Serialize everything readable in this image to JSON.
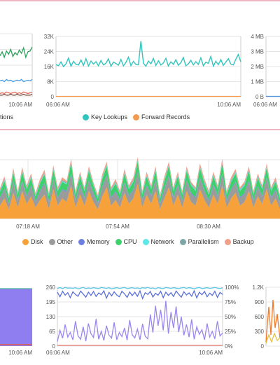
{
  "chart_data": [
    {
      "type": "line",
      "id": "top-left-partial",
      "x_ticks": [
        "10:06 AM"
      ],
      "legend_partial_text": "tions",
      "series": [
        {
          "color": "#2ca05a",
          "values": [
            52,
            57,
            50,
            58,
            54,
            60,
            51,
            56,
            53,
            59,
            55,
            62,
            50,
            57,
            58,
            63
          ]
        },
        {
          "color": "#4aa0e8",
          "values": [
            20,
            21,
            19,
            22,
            20,
            21,
            19,
            20,
            21,
            20,
            22,
            19,
            20,
            21,
            20,
            22
          ]
        },
        {
          "color": "#e46a5a",
          "values": [
            4,
            5,
            4,
            6,
            5,
            4,
            5,
            6,
            4,
            5,
            4,
            6,
            5,
            4,
            5,
            5
          ]
        },
        {
          "color": "#7a4a3a",
          "values": [
            2,
            2,
            3,
            2,
            2,
            3,
            2,
            2,
            3,
            2,
            2,
            3,
            2,
            2,
            2,
            3
          ]
        }
      ],
      "ylim": [
        0,
        80
      ]
    },
    {
      "type": "line",
      "id": "key-lookups",
      "y_ticks": [
        "0",
        "8K",
        "16K",
        "24K",
        "32K"
      ],
      "ylim": [
        0,
        32000
      ],
      "x_ticks": [
        "06:06 AM",
        "10:06 AM"
      ],
      "series": [
        {
          "name": "Key Lookups",
          "color": "#30c5bd",
          "values": [
            17000,
            16500,
            18500,
            16000,
            17500,
            20500,
            16200,
            18800,
            17200,
            16800,
            19500,
            16600,
            20200,
            16300,
            18900,
            17300,
            18600,
            16400,
            19200,
            16900,
            17800,
            20100,
            16200,
            18400,
            17600,
            16700,
            19800,
            16400,
            18200,
            21000,
            16500,
            18700,
            17100,
            16900,
            29500,
            17800,
            16200,
            18900,
            17500,
            20300,
            16600,
            19100,
            16800,
            17900,
            20400,
            16300,
            18500,
            17200,
            19600,
            16700,
            18100,
            20800,
            16400,
            17400,
            19300,
            16900,
            18600,
            17100,
            20600,
            16500,
            18300,
            17700,
            21400,
            16200,
            18800,
            17000,
            19700,
            16600,
            18400,
            20200,
            17300,
            16800,
            19900,
            22400,
            18500
          ]
        },
        {
          "name": "Forward Records",
          "color": "#f39a4f",
          "values": [
            150,
            150,
            150,
            150,
            150,
            150,
            150,
            150,
            150,
            150,
            150,
            150,
            150,
            150,
            150,
            150,
            150,
            150,
            150,
            150,
            150,
            150,
            150,
            150,
            150,
            150,
            150,
            150,
            150,
            150,
            150,
            150,
            150,
            150,
            150,
            150,
            150,
            150,
            150,
            150,
            150,
            150,
            150,
            150,
            150,
            150,
            150,
            150,
            150,
            150,
            150,
            150,
            150,
            150,
            150,
            150,
            150,
            150,
            150,
            150,
            150,
            150,
            150,
            150,
            150,
            150,
            150,
            150,
            150,
            150,
            150,
            150,
            150,
            150,
            150
          ]
        }
      ]
    },
    {
      "type": "line",
      "id": "top-right-partial",
      "y_ticks": [
        "0 B",
        "1 MB",
        "2 MB",
        "3 MB",
        "4 MB"
      ],
      "ylim": [
        0,
        4
      ],
      "x_ticks": [
        "06:06 AM"
      ]
    },
    {
      "type": "area",
      "id": "waits",
      "stacked": true,
      "x_ticks": [
        "07:18 AM",
        "07:54 AM",
        "08:30 AM"
      ],
      "series": [
        {
          "name": "Disk",
          "color": "#f7a13a",
          "values": [
            14,
            22,
            10,
            28,
            12,
            30,
            16,
            24,
            12,
            20,
            26,
            10,
            32,
            14,
            22,
            18,
            36,
            12,
            26,
            14,
            30,
            18,
            10,
            24,
            34,
            14,
            20,
            12,
            28,
            16,
            22,
            38,
            12,
            26,
            16,
            30,
            10,
            22,
            34,
            14,
            26,
            12,
            30,
            18,
            14,
            32,
            20,
            12,
            26,
            16,
            36,
            12,
            22,
            28,
            14,
            18,
            30,
            12,
            24,
            16,
            32,
            14,
            22,
            10
          ]
        },
        {
          "name": "Other",
          "color": "#9b9b9b",
          "values": [
            8,
            10,
            6,
            12,
            7,
            10,
            8,
            11,
            6,
            9,
            12,
            7,
            10,
            8,
            9,
            11,
            12,
            7,
            10,
            8,
            11,
            9,
            6,
            10,
            12,
            8,
            9,
            7,
            11,
            8,
            9,
            12,
            7,
            10,
            8,
            11,
            6,
            10,
            12,
            8,
            10,
            7,
            11,
            9,
            8,
            12,
            9,
            7,
            10,
            8,
            12,
            7,
            9,
            11,
            8,
            9,
            11,
            7,
            10,
            8,
            12,
            8,
            9,
            6
          ]
        },
        {
          "name": "Memory",
          "color": "#6e7fe0",
          "values": [
            1,
            1,
            1,
            1,
            1,
            1,
            1,
            1,
            1,
            1,
            1,
            1,
            1,
            1,
            1,
            1,
            1,
            1,
            1,
            1,
            1,
            1,
            1,
            1,
            1,
            1,
            1,
            1,
            1,
            1,
            1,
            1,
            1,
            1,
            1,
            1,
            1,
            1,
            1,
            1,
            1,
            1,
            1,
            1,
            1,
            1,
            1,
            1,
            1,
            1,
            1,
            1,
            1,
            1,
            1,
            1,
            1,
            1,
            1,
            1,
            1,
            1,
            1,
            1
          ]
        },
        {
          "name": "CPU",
          "color": "#3ed06a",
          "values": [
            6,
            8,
            5,
            9,
            6,
            10,
            7,
            8,
            5,
            8,
            9,
            6,
            10,
            7,
            8,
            7,
            11,
            6,
            9,
            7,
            10,
            8,
            5,
            8,
            10,
            7,
            8,
            6,
            9,
            7,
            8,
            11,
            6,
            9,
            7,
            10,
            5,
            8,
            10,
            7,
            9,
            6,
            10,
            8,
            7,
            10,
            8,
            6,
            9,
            7,
            11,
            6,
            8,
            9,
            7,
            8,
            10,
            6,
            9,
            7,
            10,
            7,
            8,
            5
          ]
        },
        {
          "name": "Network",
          "color": "#5fe6e6",
          "values": [
            1,
            1,
            1,
            1,
            1,
            1,
            1,
            1,
            1,
            1,
            1,
            1,
            1,
            1,
            1,
            1,
            1,
            1,
            1,
            1,
            1,
            1,
            1,
            1,
            1,
            1,
            1,
            1,
            1,
            1,
            1,
            1,
            1,
            1,
            1,
            1,
            1,
            1,
            1,
            1,
            1,
            1,
            1,
            1,
            1,
            1,
            1,
            1,
            1,
            1,
            1,
            1,
            1,
            1,
            1,
            1,
            1,
            1,
            1,
            1,
            1,
            1,
            1,
            1
          ]
        },
        {
          "name": "Parallelism",
          "color": "#7fa6a6",
          "values": [
            1,
            1,
            1,
            1,
            1,
            1,
            1,
            1,
            1,
            1,
            1,
            1,
            1,
            1,
            1,
            1,
            1,
            1,
            1,
            1,
            1,
            1,
            1,
            1,
            1,
            1,
            1,
            1,
            1,
            1,
            1,
            1,
            1,
            1,
            1,
            1,
            1,
            1,
            1,
            1,
            1,
            1,
            1,
            1,
            1,
            1,
            1,
            1,
            1,
            1,
            1,
            1,
            1,
            1,
            1,
            1,
            1,
            1,
            1,
            1,
            1,
            1,
            1,
            1
          ]
        },
        {
          "name": "Backup",
          "color": "#f0a08a",
          "values": [
            2,
            3,
            2,
            3,
            2,
            3,
            2,
            3,
            2,
            3,
            3,
            2,
            3,
            2,
            3,
            2,
            3,
            2,
            3,
            2,
            3,
            2,
            2,
            3,
            3,
            2,
            3,
            2,
            3,
            2,
            3,
            3,
            2,
            3,
            2,
            3,
            2,
            3,
            3,
            2,
            3,
            2,
            3,
            2,
            2,
            3,
            3,
            2,
            3,
            2,
            3,
            2,
            3,
            3,
            2,
            2,
            3,
            2,
            3,
            2,
            3,
            2,
            3,
            2
          ]
        }
      ]
    },
    {
      "type": "area",
      "id": "bottom-left-partial",
      "x_ticks": [
        "10:06 AM"
      ],
      "colors": {
        "fill": "#8f7ef0",
        "line": "#e45a4a",
        "top": "#4ab0a0"
      }
    },
    {
      "type": "line",
      "id": "bottom-middle",
      "y_ticks_left": [
        "0",
        "65",
        "130",
        "195",
        "260"
      ],
      "y_ticks_right": [
        "0%",
        "25%",
        "50%",
        "75%",
        "100%"
      ],
      "ylim": [
        0,
        260
      ],
      "x_ticks": [
        "06:06 AM",
        "10:06 AM"
      ],
      "series": [
        {
          "color": "#5cc8e8",
          "values": [
            255,
            258,
            254,
            259,
            256,
            257,
            255,
            258,
            253,
            256,
            259,
            254,
            257,
            255,
            258,
            256,
            254,
            259,
            257,
            255,
            258,
            253,
            256,
            258,
            255,
            257,
            259,
            254,
            256,
            258,
            255,
            257,
            254,
            258,
            256,
            259,
            255,
            257,
            253,
            258,
            256,
            254,
            259,
            257,
            255,
            258,
            256,
            254,
            257,
            259,
            255,
            258,
            256,
            253,
            257,
            259,
            254,
            256,
            258,
            255,
            257,
            259,
            256,
            254,
            258
          ]
        },
        {
          "color": "#5a6fd8",
          "values": [
            238,
            218,
            242,
            225,
            236,
            214,
            240,
            228,
            220,
            243,
            230,
            216,
            238,
            224,
            241,
            219,
            235,
            227,
            244,
            212,
            237,
            222,
            240,
            226,
            218,
            242,
            231,
            215,
            239,
            223,
            238,
            220,
            244,
            210,
            236,
            228,
            241,
            217,
            233,
            225,
            242,
            214,
            238,
            224,
            236,
            219,
            243,
            229,
            216,
            240,
            226,
            235,
            220,
            244,
            213,
            238,
            227,
            241,
            218,
            234,
            224,
            242,
            215,
            237,
            228
          ]
        },
        {
          "color": "#9b86ee",
          "values": [
            20,
            70,
            35,
            95,
            40,
            60,
            28,
            110,
            45,
            30,
            85,
            22,
            100,
            55,
            38,
            120,
            30,
            65,
            25,
            90,
            48,
            35,
            105,
            28,
            60,
            42,
            80,
            26,
            115,
            50,
            36,
            75,
            28,
            98,
            44,
            32,
            140,
            60,
            178,
            90,
            160,
            70,
            200,
            55,
            150,
            80,
            175,
            62,
            130,
            48,
            95,
            40,
            118,
            30,
            85,
            52,
            72,
            28,
            100,
            40,
            65,
            32,
            110,
            45,
            58
          ]
        }
      ]
    },
    {
      "type": "line",
      "id": "bottom-right-partial",
      "y_ticks": [
        "0",
        "300",
        "600",
        "900",
        "1.2K"
      ],
      "ylim": [
        0,
        1200
      ],
      "colors": {
        "a": "#f07a2a",
        "b": "#e8c040"
      }
    }
  ],
  "legends": {
    "top_middle": [
      {
        "label": "Key Lookups",
        "color": "#30c5bd"
      },
      {
        "label": "Forward Records",
        "color": "#f39a4f"
      }
    ],
    "waits": [
      {
        "label": "Disk",
        "color": "#f7a13a"
      },
      {
        "label": "Other",
        "color": "#9b9b9b"
      },
      {
        "label": "Memory",
        "color": "#6e7fe0"
      },
      {
        "label": "CPU",
        "color": "#3ed06a"
      },
      {
        "label": "Network",
        "color": "#5fe6e6"
      },
      {
        "label": "Parallelism",
        "color": "#7fa6a6"
      },
      {
        "label": "Backup",
        "color": "#f0a08a"
      }
    ]
  }
}
